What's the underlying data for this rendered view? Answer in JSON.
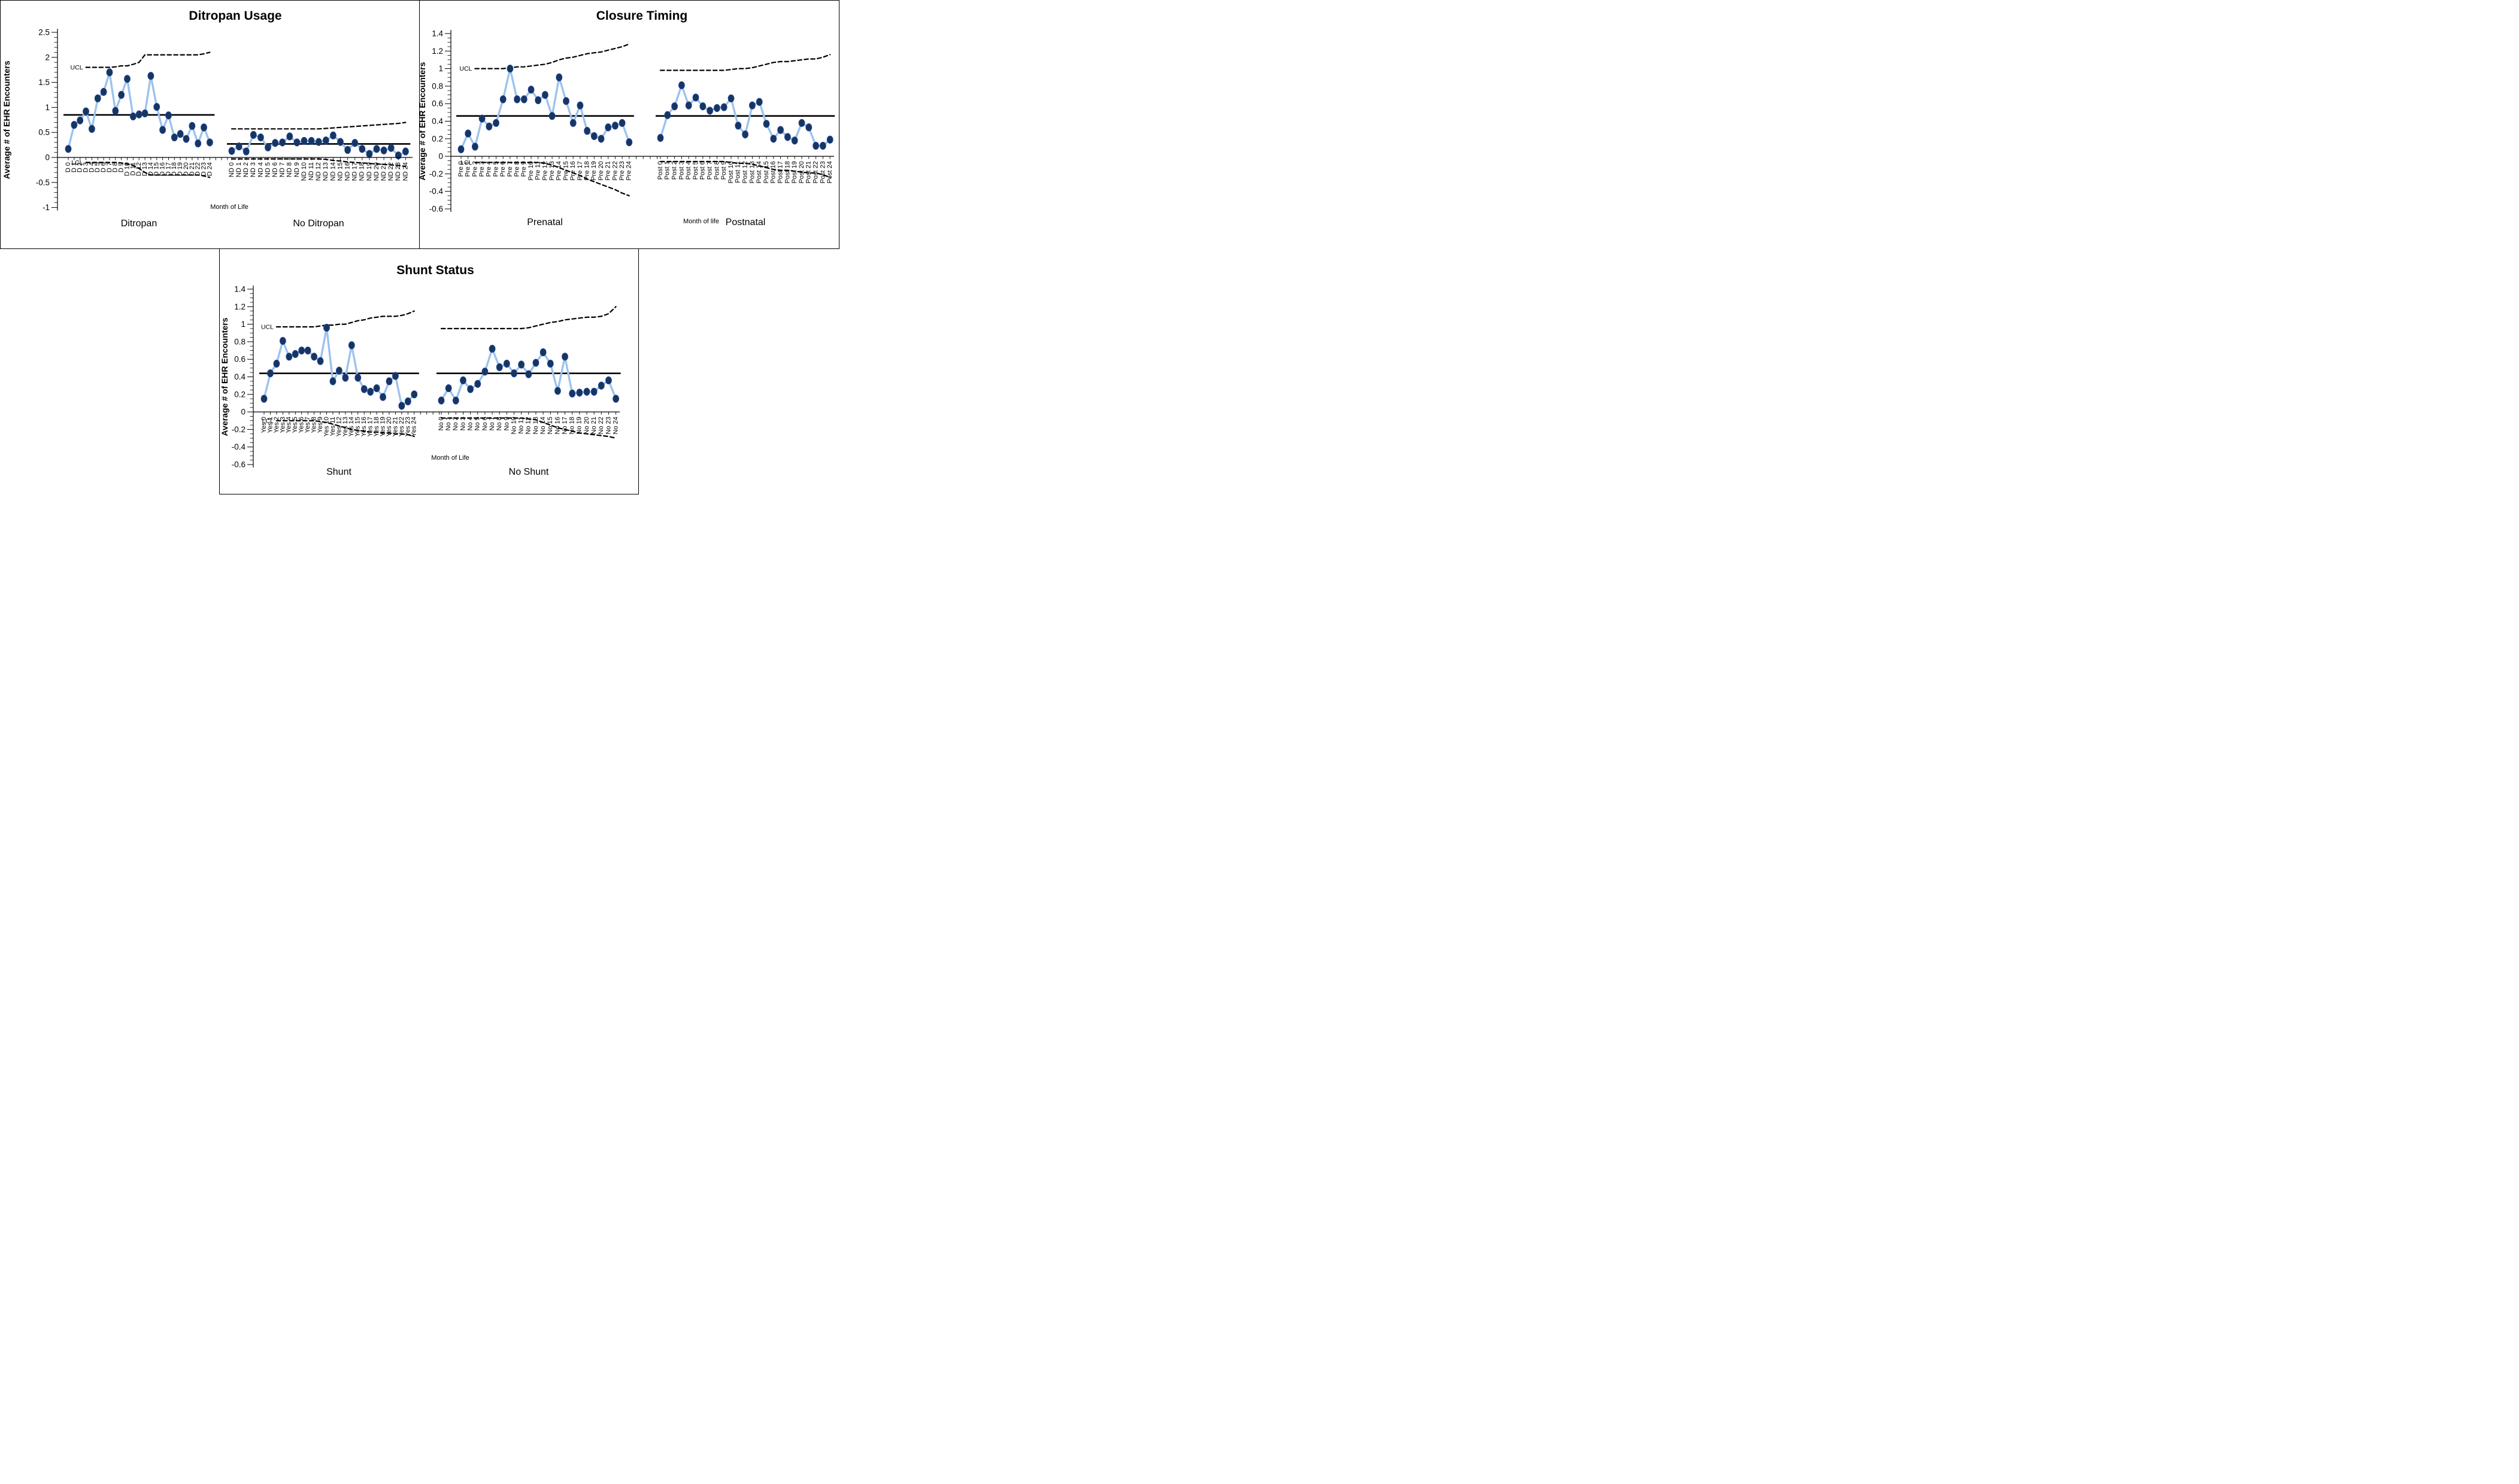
{
  "figure": {
    "background": "#ffffff",
    "marker_color": "#16365c",
    "marker_edge_color": "#1f3f94",
    "series_line_color": "#9cc3ed",
    "control_line_color": "#000000",
    "center_line_color": "#000000"
  },
  "chart_data": [
    {
      "type": "line",
      "title": "Ditropan Usage",
      "ylabel": "Average # of EHR Encounters",
      "xlabel": "Month of Life",
      "ylim": [
        -1,
        2.5
      ],
      "y_ticks": [
        2.5,
        2,
        1.5,
        1,
        0.5,
        0,
        -0.5,
        -1
      ],
      "ucl_label": "UCL",
      "lcl_label": "LCL",
      "groups": [
        {
          "name": "Ditropan",
          "categories": [
            "D 0",
            "D 1",
            "D 2",
            "D 3",
            "D 4",
            "D 5",
            "D 6",
            "D 7",
            "D 8",
            "D 9",
            "D 10",
            "D 11",
            "D 12",
            "D 13",
            "D 14",
            "D 15",
            "D 16",
            "D 17",
            "D 18",
            "D 19",
            "D 20",
            "D 21",
            "D 22",
            "D 23",
            "D 24"
          ],
          "values": [
            0.17,
            0.65,
            0.74,
            0.92,
            0.57,
            1.18,
            1.31,
            1.7,
            0.93,
            1.25,
            1.57,
            0.82,
            0.86,
            0.88,
            1.63,
            1.01,
            0.55,
            0.84,
            0.4,
            0.47,
            0.37,
            0.63,
            0.28,
            0.6,
            0.3
          ],
          "center_line": 0.85,
          "ucl": [
            1.8,
            1.8,
            1.8,
            1.8,
            1.8,
            1.8,
            1.8,
            1.8,
            1.81,
            1.83,
            1.83,
            1.86,
            1.9,
            2.05,
            2.05,
            2.05,
            2.05,
            2.05,
            2.05,
            2.05,
            2.05,
            2.05,
            2.05,
            2.07,
            2.1
          ],
          "lcl": [
            -0.1,
            -0.1,
            -0.1,
            -0.1,
            -0.1,
            -0.1,
            -0.1,
            -0.1,
            -0.1,
            -0.11,
            -0.13,
            -0.16,
            -0.22,
            -0.3,
            -0.35,
            -0.35,
            -0.35,
            -0.35,
            -0.35,
            -0.35,
            -0.35,
            -0.35,
            -0.35,
            -0.37,
            -0.4
          ]
        },
        {
          "name": "No Ditropan",
          "categories": [
            "ND 0",
            "ND 1",
            "ND 2",
            "ND 3",
            "ND 4",
            "ND 5",
            "ND 6",
            "ND 7",
            "ND 8",
            "ND 9",
            "ND 10",
            "ND 11",
            "ND 12",
            "ND 13",
            "ND 14",
            "ND 15",
            "ND 16",
            "ND 17",
            "ND 18",
            "ND 19",
            "ND 20",
            "ND 21",
            "ND 22",
            "ND 23",
            "ND 24"
          ],
          "values": [
            0.13,
            0.22,
            0.12,
            0.45,
            0.4,
            0.2,
            0.29,
            0.3,
            0.42,
            0.3,
            0.33,
            0.33,
            0.31,
            0.34,
            0.44,
            0.31,
            0.15,
            0.29,
            0.17,
            0.07,
            0.17,
            0.14,
            0.19,
            0.04,
            0.12
          ],
          "center_line": 0.27,
          "ucl": [
            0.57,
            0.57,
            0.57,
            0.57,
            0.57,
            0.57,
            0.57,
            0.57,
            0.57,
            0.57,
            0.57,
            0.57,
            0.57,
            0.58,
            0.59,
            0.6,
            0.61,
            0.62,
            0.63,
            0.64,
            0.65,
            0.66,
            0.67,
            0.68,
            0.7
          ],
          "lcl": [
            -0.03,
            -0.03,
            -0.03,
            -0.03,
            -0.03,
            -0.03,
            -0.03,
            -0.03,
            -0.03,
            -0.03,
            -0.03,
            -0.03,
            -0.03,
            -0.04,
            -0.06,
            -0.07,
            -0.09,
            -0.1,
            -0.11,
            -0.12,
            -0.13,
            -0.14,
            -0.15,
            -0.16,
            -0.18
          ]
        }
      ]
    },
    {
      "type": "line",
      "title": "Closure Timing",
      "ylabel": "Average # of EHR Encounters",
      "xlabel": "Month of life",
      "ylim": [
        -0.6,
        1.4
      ],
      "y_ticks": [
        1.4,
        1.2,
        1,
        0.8,
        0.6,
        0.4,
        0.2,
        0,
        -0.2,
        -0.4,
        -0.6
      ],
      "ucl_label": "UCL",
      "lcl_label": "LCL",
      "groups": [
        {
          "name": "Prenatal",
          "categories": [
            "Pre 0",
            "Pre 1",
            "Pre 2",
            "Pre 3",
            "Pre 4",
            "Pre 5",
            "Pre 6",
            "Pre 7",
            "Pre 8",
            "Pre 9",
            "Pre 10",
            "Pre 11",
            "Pre 12",
            "Pre 13",
            "Pre 14",
            "Pre 15",
            "Pre 16",
            "Pre 17",
            "Pre 18",
            "Pre 19",
            "Pre 20",
            "Pre 21",
            "Pre 22",
            "Pre 23",
            "Pre 24"
          ],
          "values": [
            0.08,
            0.26,
            0.11,
            0.43,
            0.34,
            0.38,
            0.65,
            1.0,
            0.65,
            0.65,
            0.76,
            0.64,
            0.7,
            0.46,
            0.9,
            0.63,
            0.38,
            0.58,
            0.29,
            0.23,
            0.2,
            0.33,
            0.35,
            0.38,
            0.16
          ],
          "center_line": 0.46,
          "ucl": [
            1.0,
            1.0,
            1.0,
            1.0,
            1.0,
            1.0,
            1.0,
            1.01,
            1.02,
            1.02,
            1.03,
            1.04,
            1.05,
            1.07,
            1.1,
            1.12,
            1.13,
            1.15,
            1.17,
            1.18,
            1.19,
            1.21,
            1.23,
            1.25,
            1.28
          ],
          "lcl": [
            -0.07,
            -0.07,
            -0.07,
            -0.07,
            -0.07,
            -0.07,
            -0.07,
            -0.07,
            -0.07,
            -0.07,
            -0.07,
            -0.07,
            -0.08,
            -0.1,
            -0.13,
            -0.16,
            -0.19,
            -0.22,
            -0.26,
            -0.29,
            -0.32,
            -0.35,
            -0.38,
            -0.42,
            -0.45
          ]
        },
        {
          "name": "Postnatal",
          "categories": [
            "Post 0",
            "Post 1",
            "Post 2",
            "Post 3",
            "Post 4",
            "Post 5",
            "Post 6",
            "Post 7",
            "Post 8",
            "Post 9",
            "Post 10",
            "Post 11",
            "Post 12",
            "Post 13",
            "Post 14",
            "Post 15",
            "Post 16",
            "Post 17",
            "Post 18",
            "Post 19",
            "Post 20",
            "Post 21",
            "Post 22",
            "Post 23",
            "Post 24"
          ],
          "values": [
            0.21,
            0.47,
            0.57,
            0.81,
            0.58,
            0.67,
            0.57,
            0.52,
            0.55,
            0.56,
            0.66,
            0.35,
            0.25,
            0.58,
            0.62,
            0.37,
            0.2,
            0.3,
            0.22,
            0.18,
            0.38,
            0.33,
            0.12,
            0.12,
            0.19
          ],
          "center_line": 0.46,
          "ucl": [
            0.98,
            0.98,
            0.98,
            0.98,
            0.98,
            0.98,
            0.98,
            0.98,
            0.98,
            0.98,
            0.99,
            1.0,
            1.0,
            1.01,
            1.03,
            1.05,
            1.07,
            1.08,
            1.08,
            1.09,
            1.1,
            1.11,
            1.11,
            1.13,
            1.16
          ],
          "lcl": [
            -0.06,
            -0.06,
            -0.06,
            -0.06,
            -0.06,
            -0.06,
            -0.06,
            -0.06,
            -0.06,
            -0.06,
            -0.07,
            -0.08,
            -0.08,
            -0.09,
            -0.11,
            -0.13,
            -0.15,
            -0.16,
            -0.16,
            -0.17,
            -0.18,
            -0.19,
            -0.19,
            -0.21,
            -0.24
          ]
        }
      ]
    },
    {
      "type": "line",
      "title": "Shunt Status",
      "ylabel": "Average # of EHR Encounters",
      "xlabel": "Month of Life",
      "ylim": [
        -0.6,
        1.4
      ],
      "y_ticks": [
        1.4,
        1.2,
        1,
        0.8,
        0.6,
        0.4,
        0.2,
        0,
        -0.2,
        -0.4,
        -0.6
      ],
      "ucl_label": "UCL",
      "lcl_label": "LCL",
      "groups": [
        {
          "name": "Shunt",
          "categories": [
            "Yes 0",
            "Yes 1",
            "Yes 2",
            "Yes 3",
            "Yes 4",
            "Yes 5",
            "Yes 6",
            "Yes 7",
            "Yes 8",
            "Yes 9",
            "Yes 10",
            "Yes 11",
            "Yes 12",
            "Yes 13",
            "Yes 14",
            "Yes 15",
            "Yes 16",
            "Yes 17",
            "Yes 18",
            "Yes 19",
            "Yes 20",
            "Yes 21",
            "Yes 22",
            "Yes 23",
            "Yes 24"
          ],
          "values": [
            0.15,
            0.44,
            0.55,
            0.81,
            0.63,
            0.66,
            0.7,
            0.7,
            0.63,
            0.58,
            0.96,
            0.35,
            0.47,
            0.39,
            0.76,
            0.39,
            0.26,
            0.23,
            0.27,
            0.17,
            0.35,
            0.41,
            0.07,
            0.12,
            0.2
          ],
          "center_line": 0.44,
          "ucl": [
            0.97,
            0.97,
            0.97,
            0.97,
            0.97,
            0.97,
            0.97,
            0.97,
            0.97,
            0.98,
            0.99,
            0.99,
            1.0,
            1.0,
            1.02,
            1.04,
            1.05,
            1.07,
            1.08,
            1.09,
            1.09,
            1.09,
            1.1,
            1.12,
            1.15
          ],
          "lcl": [
            -0.1,
            -0.1,
            -0.1,
            -0.1,
            -0.1,
            -0.1,
            -0.1,
            -0.1,
            -0.1,
            -0.11,
            -0.12,
            -0.14,
            -0.16,
            -0.18,
            -0.2,
            -0.21,
            -0.22,
            -0.23,
            -0.23,
            -0.24,
            -0.24,
            -0.25,
            -0.25,
            -0.26,
            -0.28
          ]
        },
        {
          "name": "No Shunt",
          "categories": [
            "No 0",
            "No 1",
            "No 2",
            "No 3",
            "No 4",
            "No 5",
            "No 6",
            "No 7",
            "No 8",
            "No 9",
            "No 10",
            "No 11",
            "No 12",
            "No 13",
            "No 14",
            "No 15",
            "No 16",
            "No 17",
            "No 18",
            "No 19",
            "No 20",
            "No 21",
            "No 22",
            "No 23",
            "No 24"
          ],
          "values": [
            0.13,
            0.27,
            0.13,
            0.36,
            0.26,
            0.32,
            0.46,
            0.72,
            0.51,
            0.55,
            0.44,
            0.54,
            0.43,
            0.56,
            0.68,
            0.55,
            0.24,
            0.63,
            0.21,
            0.22,
            0.23,
            0.23,
            0.3,
            0.36,
            0.15
          ],
          "center_line": 0.44,
          "ucl": [
            0.95,
            0.95,
            0.95,
            0.95,
            0.95,
            0.95,
            0.95,
            0.95,
            0.95,
            0.95,
            0.95,
            0.95,
            0.96,
            0.98,
            1.0,
            1.02,
            1.03,
            1.05,
            1.06,
            1.07,
            1.08,
            1.08,
            1.09,
            1.12,
            1.2
          ],
          "lcl": [
            -0.07,
            -0.07,
            -0.07,
            -0.07,
            -0.07,
            -0.07,
            -0.07,
            -0.07,
            -0.07,
            -0.07,
            -0.07,
            -0.07,
            -0.08,
            -0.09,
            -0.12,
            -0.15,
            -0.18,
            -0.2,
            -0.22,
            -0.24,
            -0.25,
            -0.26,
            -0.27,
            -0.28,
            -0.3
          ]
        }
      ]
    }
  ]
}
